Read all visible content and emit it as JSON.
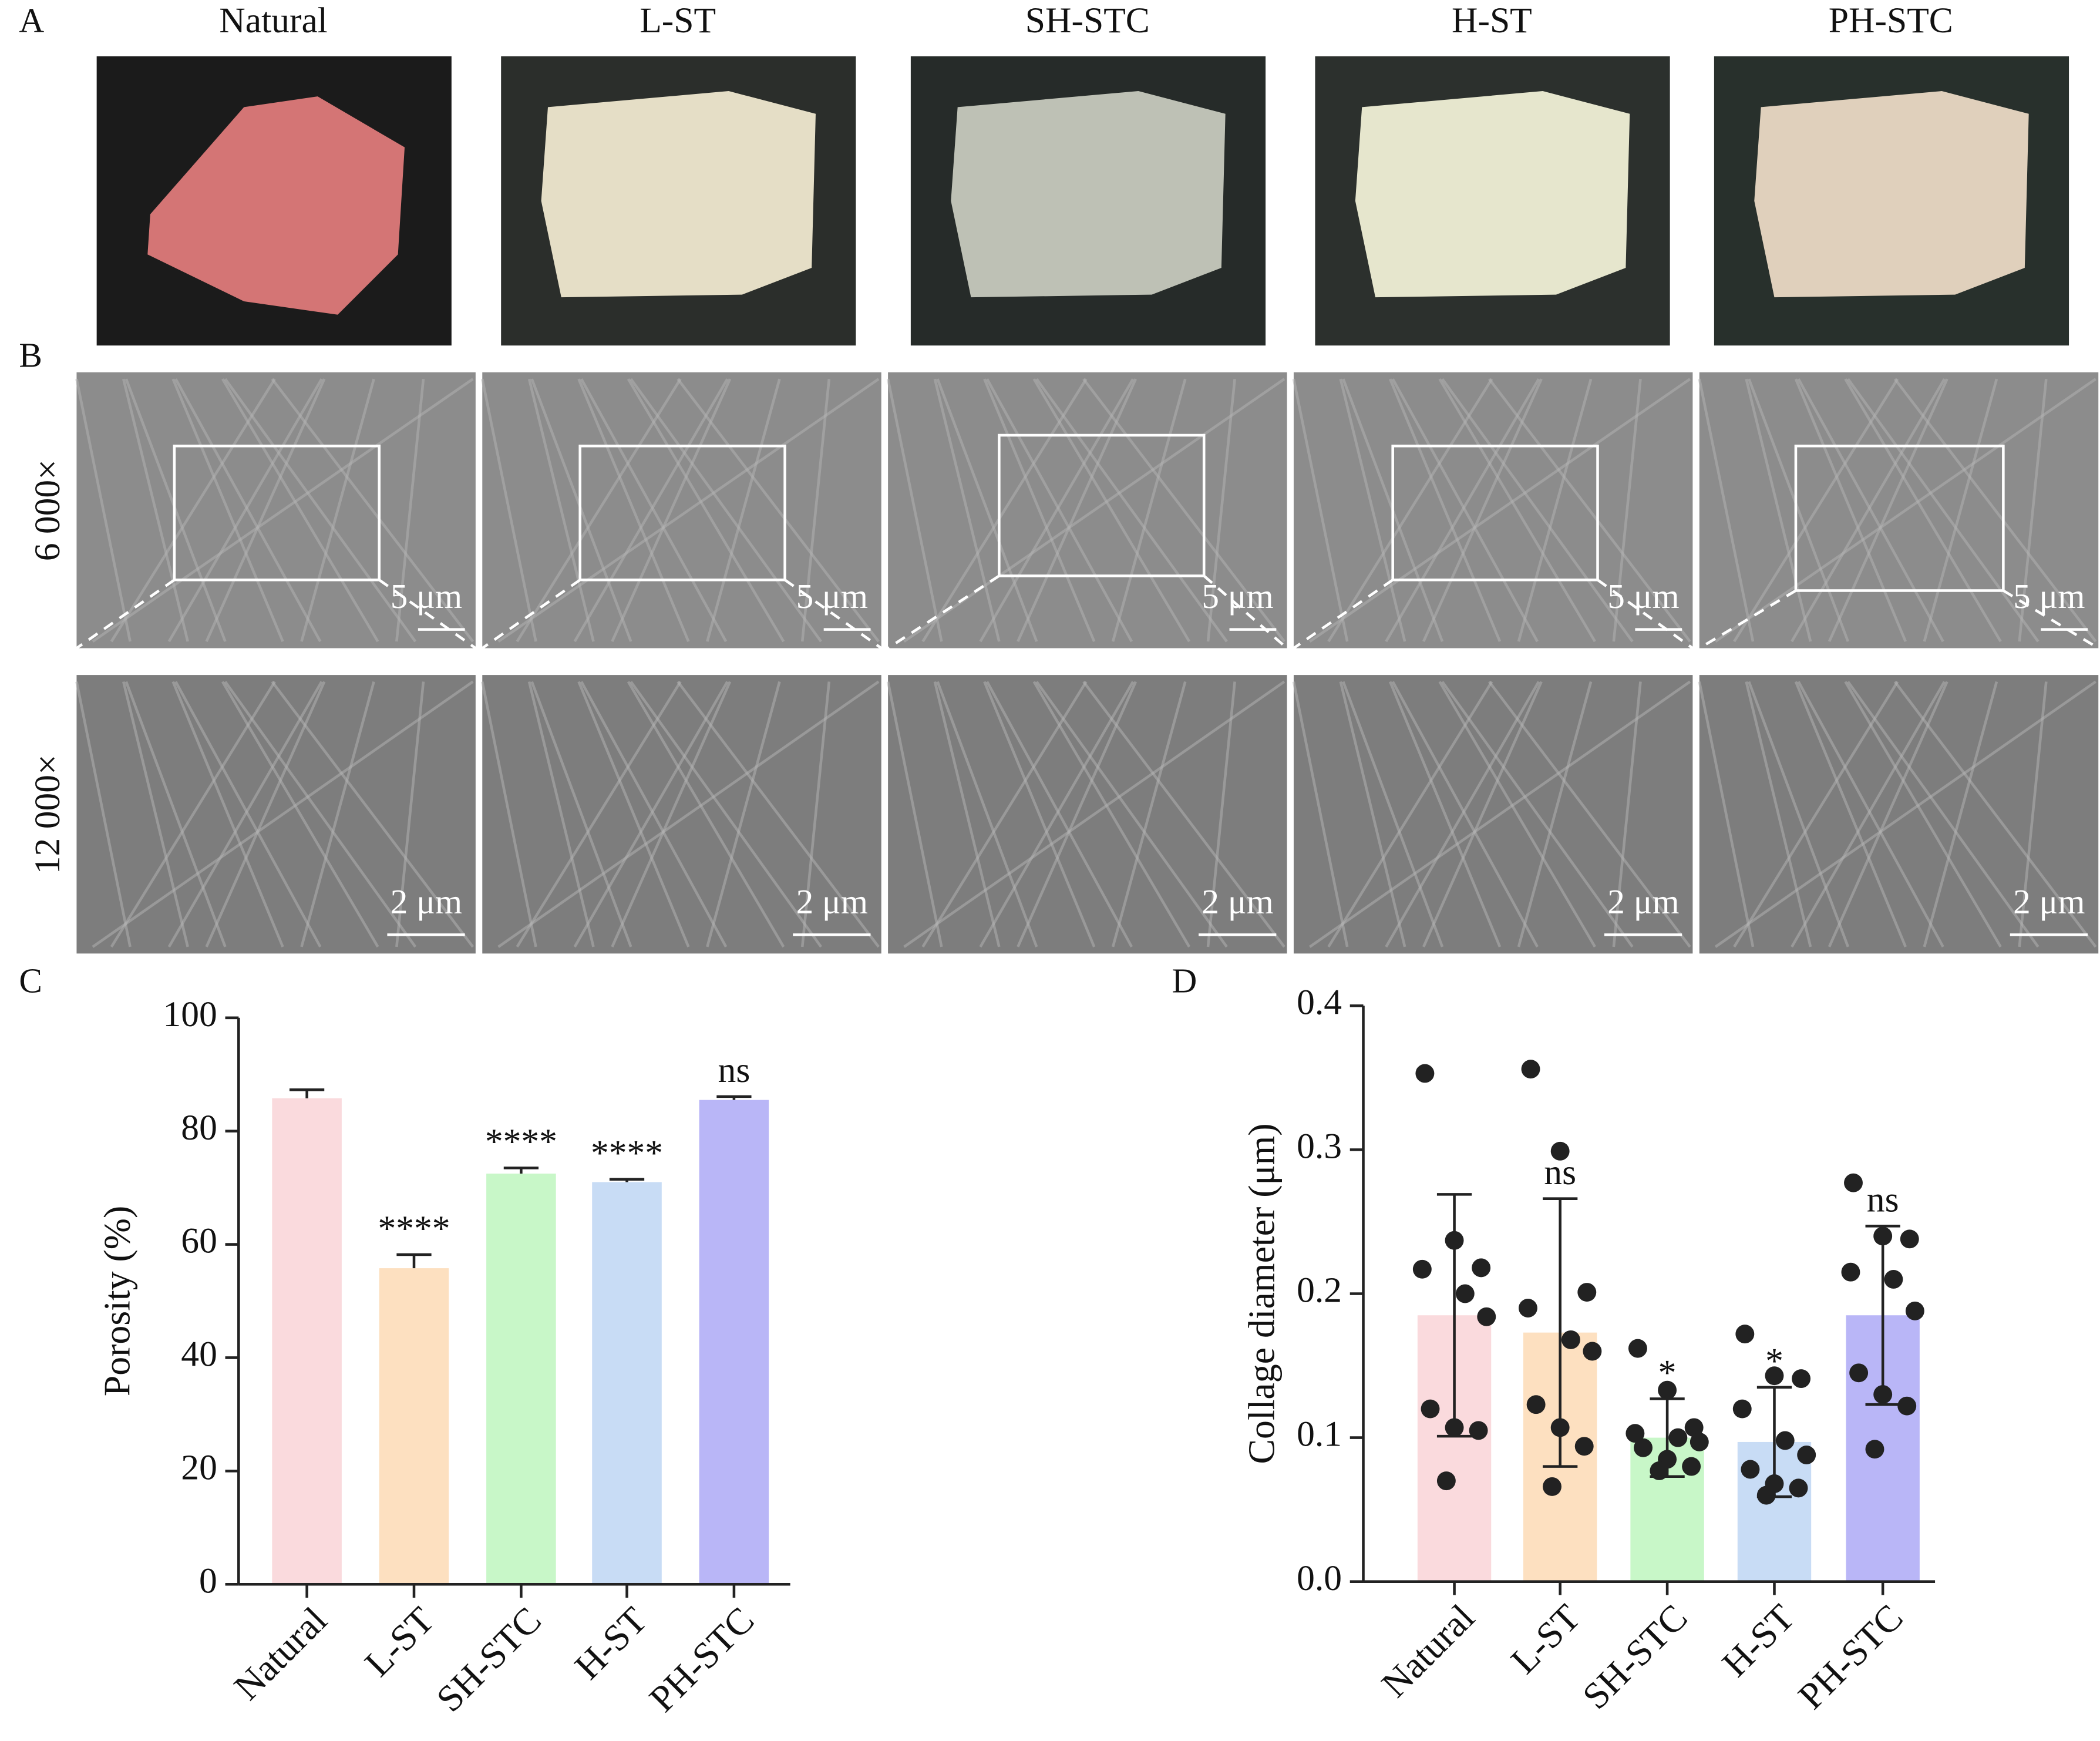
{
  "figure": {
    "panel_labels": [
      "A",
      "B",
      "C",
      "D"
    ],
    "photo_labels": [
      "Natural",
      "L-ST",
      "SH-STC",
      "H-ST",
      "PH-STC"
    ],
    "magnifications": [
      "6 000×",
      "12 000×"
    ],
    "scale_bars": [
      "5 μm",
      "2 μm"
    ]
  },
  "chart_data": [
    {
      "type": "bar",
      "y_label": "Porosity (%)",
      "categories": [
        "Natural",
        "L-ST",
        "SH-STC",
        "H-ST",
        "PH-STC"
      ],
      "values": [
        85.8,
        55.8,
        72.5,
        71.0,
        85.5
      ],
      "errors": [
        1.5,
        2.4,
        1.0,
        0.5,
        0.6
      ],
      "error_direction": "up",
      "annotations": [
        null,
        "****",
        "****",
        "****",
        "ns"
      ],
      "colors": [
        "#fadadd",
        "#fde0c0",
        "#c8f7c8",
        "#c8dcf5",
        "#b9b6f7"
      ],
      "ylim": [
        0,
        100
      ],
      "yticks": [
        0,
        20,
        40,
        60,
        80,
        100
      ]
    },
    {
      "type": "bar_scatter",
      "y_label": "Collage diameter (μm)",
      "categories": [
        "Natural",
        "L-ST",
        "SH-STC",
        "H-ST",
        "PH-STC"
      ],
      "values": [
        0.185,
        0.173,
        0.1,
        0.097,
        0.185
      ],
      "errors": [
        0.084,
        0.093,
        0.027,
        0.038,
        0.062
      ],
      "error_direction": "both",
      "points": [
        [
          0.353,
          0.237,
          0.218,
          0.217,
          0.2,
          0.184,
          0.12,
          0.107,
          0.105,
          0.07
        ],
        [
          0.356,
          0.299,
          0.201,
          0.19,
          0.168,
          0.16,
          0.123,
          0.107,
          0.094,
          0.066
        ],
        [
          0.162,
          0.133,
          0.107,
          0.103,
          0.1,
          0.097,
          0.093,
          0.085,
          0.08,
          0.077
        ],
        [
          0.172,
          0.143,
          0.141,
          0.12,
          0.098,
          0.088,
          0.078,
          0.068,
          0.065,
          0.06
        ],
        [
          0.277,
          0.24,
          0.238,
          0.215,
          0.21,
          0.188,
          0.145,
          0.13,
          0.122,
          0.092
        ]
      ],
      "point_color": "#222222",
      "annotations": [
        null,
        "ns",
        "*",
        "*",
        "ns"
      ],
      "colors": [
        "#fadadd",
        "#fde0c0",
        "#c8f7c8",
        "#c8dcf5",
        "#b9b6f7"
      ],
      "ylim": [
        0,
        0.4
      ],
      "yticks": [
        {
          "value": 0,
          "label": "0.0"
        },
        0.1,
        0.2,
        0.3,
        0.4
      ]
    }
  ]
}
